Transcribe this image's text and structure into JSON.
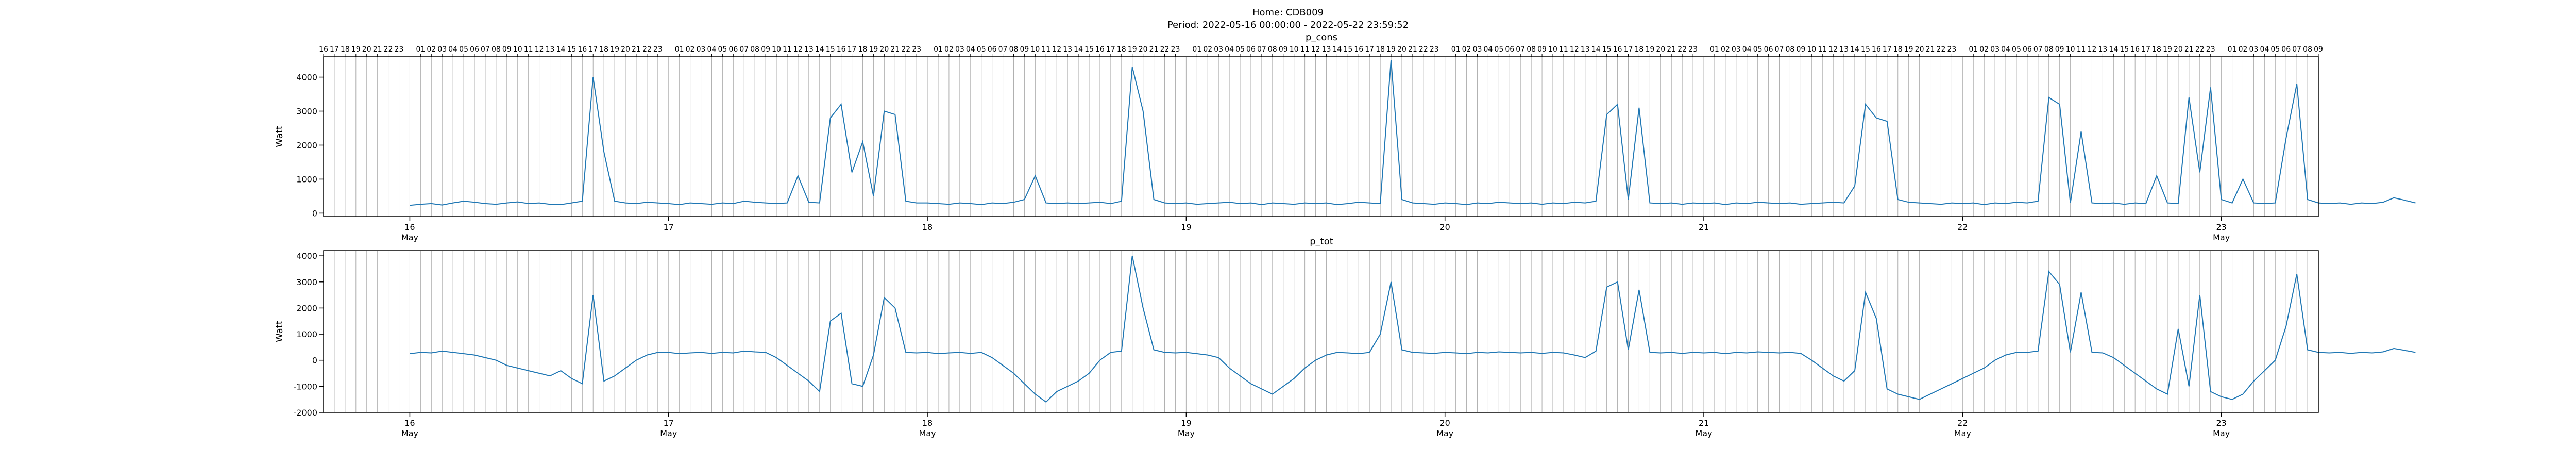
{
  "figure": {
    "home_line": "Home: CDB009",
    "period_line": "Period: 2022-05-16 00:00:00 - 2022-05-22 23:59:52"
  },
  "colors": {
    "line": "#1f77b4",
    "grid": "#b0b0b0",
    "axes": "#000000"
  },
  "chart_data": [
    {
      "type": "line",
      "title": "p_cons",
      "ylabel": "Watt",
      "ylim": [
        -100,
        4600
      ],
      "yticks": [
        0,
        1000,
        2000,
        3000,
        4000
      ],
      "xlim": [
        "2022-05-15 16:00",
        "2022-05-23 09:00"
      ],
      "date_ticks": [
        {
          "day": "16",
          "month": "May"
        },
        {
          "day": "17",
          "month": ""
        },
        {
          "day": "18",
          "month": ""
        },
        {
          "day": "19",
          "month": ""
        },
        {
          "day": "20",
          "month": ""
        },
        {
          "day": "21",
          "month": ""
        },
        {
          "day": "22",
          "month": ""
        },
        {
          "day": "23",
          "month": "May"
        }
      ],
      "hour_ticks_top": "hourly labels 00–23 each day (00 omitted at midnight)",
      "grid": "vertical hourly lines",
      "series": [
        {
          "values_description": "hourly approx readings from 2022-05-16 00:00",
          "x_start": "2022-05-16 00:00",
          "x_step_hours": 1,
          "values": [
            230,
            260,
            280,
            240,
            300,
            350,
            320,
            280,
            260,
            300,
            330,
            280,
            300,
            260,
            250,
            300,
            350,
            4000,
            1800,
            350,
            300,
            280,
            320,
            300,
            280,
            250,
            300,
            280,
            260,
            300,
            280,
            350,
            320,
            300,
            280,
            300,
            1100,
            320,
            300,
            2800,
            3200,
            1200,
            2100,
            500,
            3000,
            2900,
            350,
            300,
            300,
            280,
            260,
            300,
            280,
            250,
            300,
            280,
            320,
            400,
            1100,
            300,
            280,
            300,
            280,
            300,
            320,
            280,
            350,
            4300,
            3000,
            400,
            300,
            280,
            300,
            260,
            280,
            300,
            320,
            280,
            300,
            250,
            300,
            280,
            260,
            300,
            280,
            300,
            250,
            280,
            320,
            300,
            280,
            4500,
            400,
            300,
            280,
            260,
            300,
            280,
            250,
            300,
            280,
            320,
            300,
            280,
            300,
            260,
            300,
            280,
            320,
            300,
            350,
            2900,
            3200,
            400,
            3100,
            300,
            280,
            300,
            260,
            300,
            280,
            300,
            250,
            300,
            280,
            320,
            300,
            280,
            300,
            260,
            280,
            300,
            320,
            300,
            800,
            3200,
            2800,
            2700,
            400,
            320,
            300,
            280,
            260,
            300,
            280,
            300,
            250,
            300,
            280,
            320,
            300,
            350,
            3400,
            3200,
            300,
            2400,
            300,
            280,
            300,
            260,
            300,
            280,
            1100,
            300,
            280,
            3400,
            1200,
            3700,
            400,
            300,
            1000,
            300,
            280,
            300,
            2200,
            3800,
            400,
            300,
            280,
            300,
            260,
            300,
            280,
            320,
            450,
            380,
            300
          ]
        }
      ]
    },
    {
      "type": "line",
      "title": "p_tot",
      "ylabel": "Watt",
      "ylim": [
        -2000,
        4200
      ],
      "yticks": [
        -2000,
        -1000,
        0,
        1000,
        2000,
        3000,
        4000
      ],
      "xlim": [
        "2022-05-15 16:00",
        "2022-05-23 09:00"
      ],
      "date_ticks": [
        {
          "day": "16",
          "month": "May"
        },
        {
          "day": "17",
          "month": "May"
        },
        {
          "day": "18",
          "month": "May"
        },
        {
          "day": "19",
          "month": "May"
        },
        {
          "day": "20",
          "month": "May"
        },
        {
          "day": "21",
          "month": "May"
        },
        {
          "day": "22",
          "month": "May"
        },
        {
          "day": "23",
          "month": "May"
        }
      ],
      "grid": "vertical hourly lines",
      "series": [
        {
          "x_start": "2022-05-16 00:00",
          "x_step_hours": 1,
          "values": [
            250,
            300,
            280,
            350,
            300,
            250,
            200,
            100,
            0,
            -200,
            -300,
            -400,
            -500,
            -600,
            -400,
            -700,
            -900,
            2500,
            -800,
            -600,
            -300,
            0,
            200,
            300,
            300,
            250,
            280,
            300,
            260,
            300,
            280,
            350,
            320,
            300,
            100,
            -200,
            -500,
            -800,
            -1200,
            1500,
            1800,
            -900,
            -1000,
            200,
            2400,
            2000,
            300,
            280,
            300,
            250,
            280,
            300,
            260,
            300,
            100,
            -200,
            -500,
            -900,
            -1300,
            -1600,
            -1200,
            -1000,
            -800,
            -500,
            0,
            300,
            350,
            4000,
            2000,
            400,
            300,
            280,
            300,
            250,
            200,
            100,
            -300,
            -600,
            -900,
            -1100,
            -1300,
            -1000,
            -700,
            -300,
            0,
            200,
            300,
            280,
            250,
            300,
            1000,
            3000,
            400,
            300,
            280,
            260,
            300,
            280,
            250,
            300,
            280,
            320,
            300,
            280,
            300,
            260,
            300,
            280,
            200,
            100,
            350,
            2800,
            3000,
            400,
            2700,
            300,
            280,
            300,
            260,
            300,
            280,
            300,
            250,
            300,
            280,
            320,
            300,
            280,
            300,
            260,
            0,
            -300,
            -600,
            -800,
            -400,
            2600,
            1600,
            -1100,
            -1300,
            -1400,
            -1500,
            -1300,
            -1100,
            -900,
            -700,
            -500,
            -300,
            0,
            200,
            300,
            300,
            350,
            3400,
            2900,
            300,
            2600,
            300,
            280,
            100,
            -200,
            -500,
            -800,
            -1100,
            -1300,
            1200,
            -1000,
            2500,
            -1200,
            -1400,
            -1500,
            -1300,
            -800,
            -400,
            0,
            1300,
            3300,
            400,
            300,
            280,
            300,
            260,
            300,
            280,
            320,
            450,
            380,
            300
          ]
        }
      ]
    }
  ]
}
